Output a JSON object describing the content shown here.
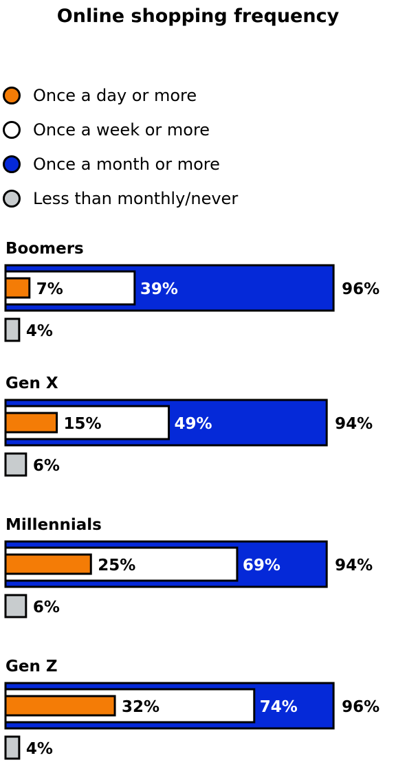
{
  "chart_data": {
    "type": "bar",
    "title": "Online shopping frequency",
    "legend": [
      {
        "name": "Once a day or more",
        "color": "#f47c06"
      },
      {
        "name": "Once a week or more",
        "color": "#ffffff"
      },
      {
        "name": "Once a month or more",
        "color": "#0529d8"
      },
      {
        "name": "Less than monthly/never",
        "color": "#c8ccce"
      }
    ],
    "categories": [
      "Boomers",
      "Gen X",
      "Millennials",
      "Gen Z"
    ],
    "series": [
      {
        "name": "Once a day or more",
        "values": [
          7,
          15,
          25,
          32
        ]
      },
      {
        "name": "Once a week or more",
        "values": [
          39,
          49,
          69,
          74
        ]
      },
      {
        "name": "Once a month or more",
        "values": [
          96,
          94,
          94,
          96
        ]
      },
      {
        "name": "Less than monthly/never",
        "values": [
          4,
          6,
          6,
          4
        ]
      }
    ],
    "xlim": [
      0,
      100
    ],
    "legend_position": "top-left"
  }
}
